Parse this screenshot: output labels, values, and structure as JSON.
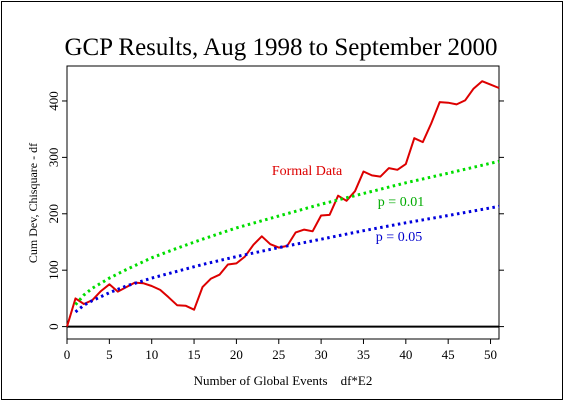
{
  "chart_data": {
    "type": "line",
    "title": "GCP Results, Aug 1998 to September 2000",
    "xlabel": "Number of Global Events    df*E2",
    "ylabel": "Cum Dev, Chisquare - df",
    "xlim": [
      0,
      51
    ],
    "ylim": [
      -22,
      462
    ],
    "x_ticks": [
      0,
      5,
      10,
      15,
      20,
      25,
      30,
      35,
      40,
      45,
      50
    ],
    "y_ticks": [
      0,
      100,
      200,
      300,
      400
    ],
    "grid": false,
    "zero_line": 0,
    "series": [
      {
        "name": "Formal Data",
        "color": "#dd0000",
        "style": "solid",
        "x": [
          0,
          1,
          2,
          3,
          4,
          5,
          6,
          7,
          8,
          9,
          10,
          11,
          12,
          13,
          14,
          15,
          16,
          17,
          18,
          19,
          20,
          21,
          22,
          23,
          24,
          25,
          26,
          27,
          28,
          29,
          30,
          31,
          32,
          33,
          34,
          35,
          36,
          37,
          38,
          39,
          40,
          41,
          42,
          43,
          44,
          45,
          46,
          47,
          48,
          49,
          50,
          51
        ],
        "values": [
          0,
          50,
          40,
          47,
          63,
          75,
          62,
          70,
          78,
          77,
          72,
          65,
          52,
          38,
          37,
          30,
          70,
          85,
          92,
          110,
          112,
          124,
          145,
          160,
          146,
          140,
          143,
          167,
          172,
          169,
          197,
          198,
          232,
          223,
          240,
          275,
          268,
          266,
          281,
          278,
          288,
          334,
          327,
          360,
          398,
          397,
          394,
          401,
          422,
          435,
          429,
          423
        ]
      },
      {
        "name": "p = 0.01",
        "color": "#00dd00",
        "style": "dotted",
        "x": [
          1,
          2,
          3,
          4,
          5,
          7,
          10,
          13,
          16,
          20,
          25,
          30,
          35,
          40,
          45,
          51
        ],
        "values": [
          39,
          56,
          68,
          77,
          86,
          101,
          122,
          139,
          155,
          175,
          196,
          217,
          236,
          255,
          272,
          293
        ]
      },
      {
        "name": "p = 0.05",
        "color": "#0000dd",
        "style": "dotted",
        "x": [
          1,
          2,
          3,
          4,
          5,
          7,
          10,
          13,
          16,
          20,
          25,
          30,
          35,
          40,
          45,
          51
        ],
        "values": [
          26,
          38,
          46,
          53,
          60,
          72,
          86,
          98,
          110,
          124,
          140,
          155,
          170,
          184,
          197,
          213
        ]
      }
    ],
    "annotations": [
      {
        "text": "Formal Data",
        "color": "#dd0000"
      },
      {
        "text": "p = 0.01",
        "color": "#00aa00"
      },
      {
        "text": "p = 0.05",
        "color": "#0000cc"
      }
    ]
  }
}
